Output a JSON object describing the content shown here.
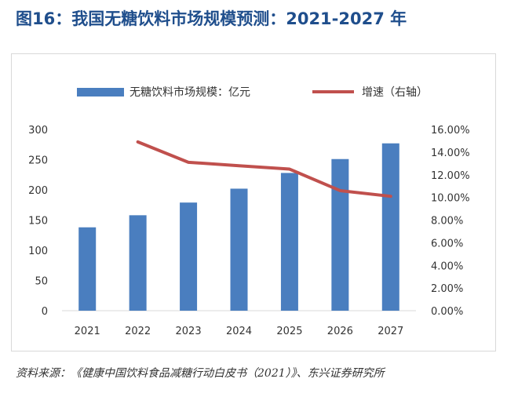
{
  "figure_title": "图16：我国无糖饮料市场规模预测：2021-2027 年",
  "source_note": "资料来源：《健康中国饮料食品减糖行动白皮书（2021）》、东兴证券研究所",
  "colors": {
    "bar": "#4a7ebf",
    "line": "#c0504d",
    "title": "#1f4e8c"
  },
  "chart_data": {
    "type": "bar",
    "title": "",
    "categories": [
      "2021",
      "2022",
      "2023",
      "2024",
      "2025",
      "2026",
      "2027"
    ],
    "series": [
      {
        "name": "无糖饮料市场规模：亿元",
        "type": "bar",
        "axis": "left",
        "values": [
          138,
          158,
          179,
          202,
          228,
          251,
          277
        ]
      },
      {
        "name": "增速（右轴）",
        "type": "line",
        "axis": "right",
        "values": [
          null,
          14.9,
          13.1,
          12.8,
          12.5,
          10.6,
          10.1
        ]
      }
    ],
    "y_left": {
      "min": 0,
      "max": 300,
      "ticks": [
        "0",
        "50",
        "100",
        "150",
        "200",
        "250",
        "300"
      ]
    },
    "y_right": {
      "min": 0,
      "max": 16,
      "ticks": [
        "0.00%",
        "2.00%",
        "4.00%",
        "6.00%",
        "8.00%",
        "10.00%",
        "12.00%",
        "14.00%",
        "16.00%"
      ]
    },
    "legend_position": "top",
    "grid": false
  }
}
